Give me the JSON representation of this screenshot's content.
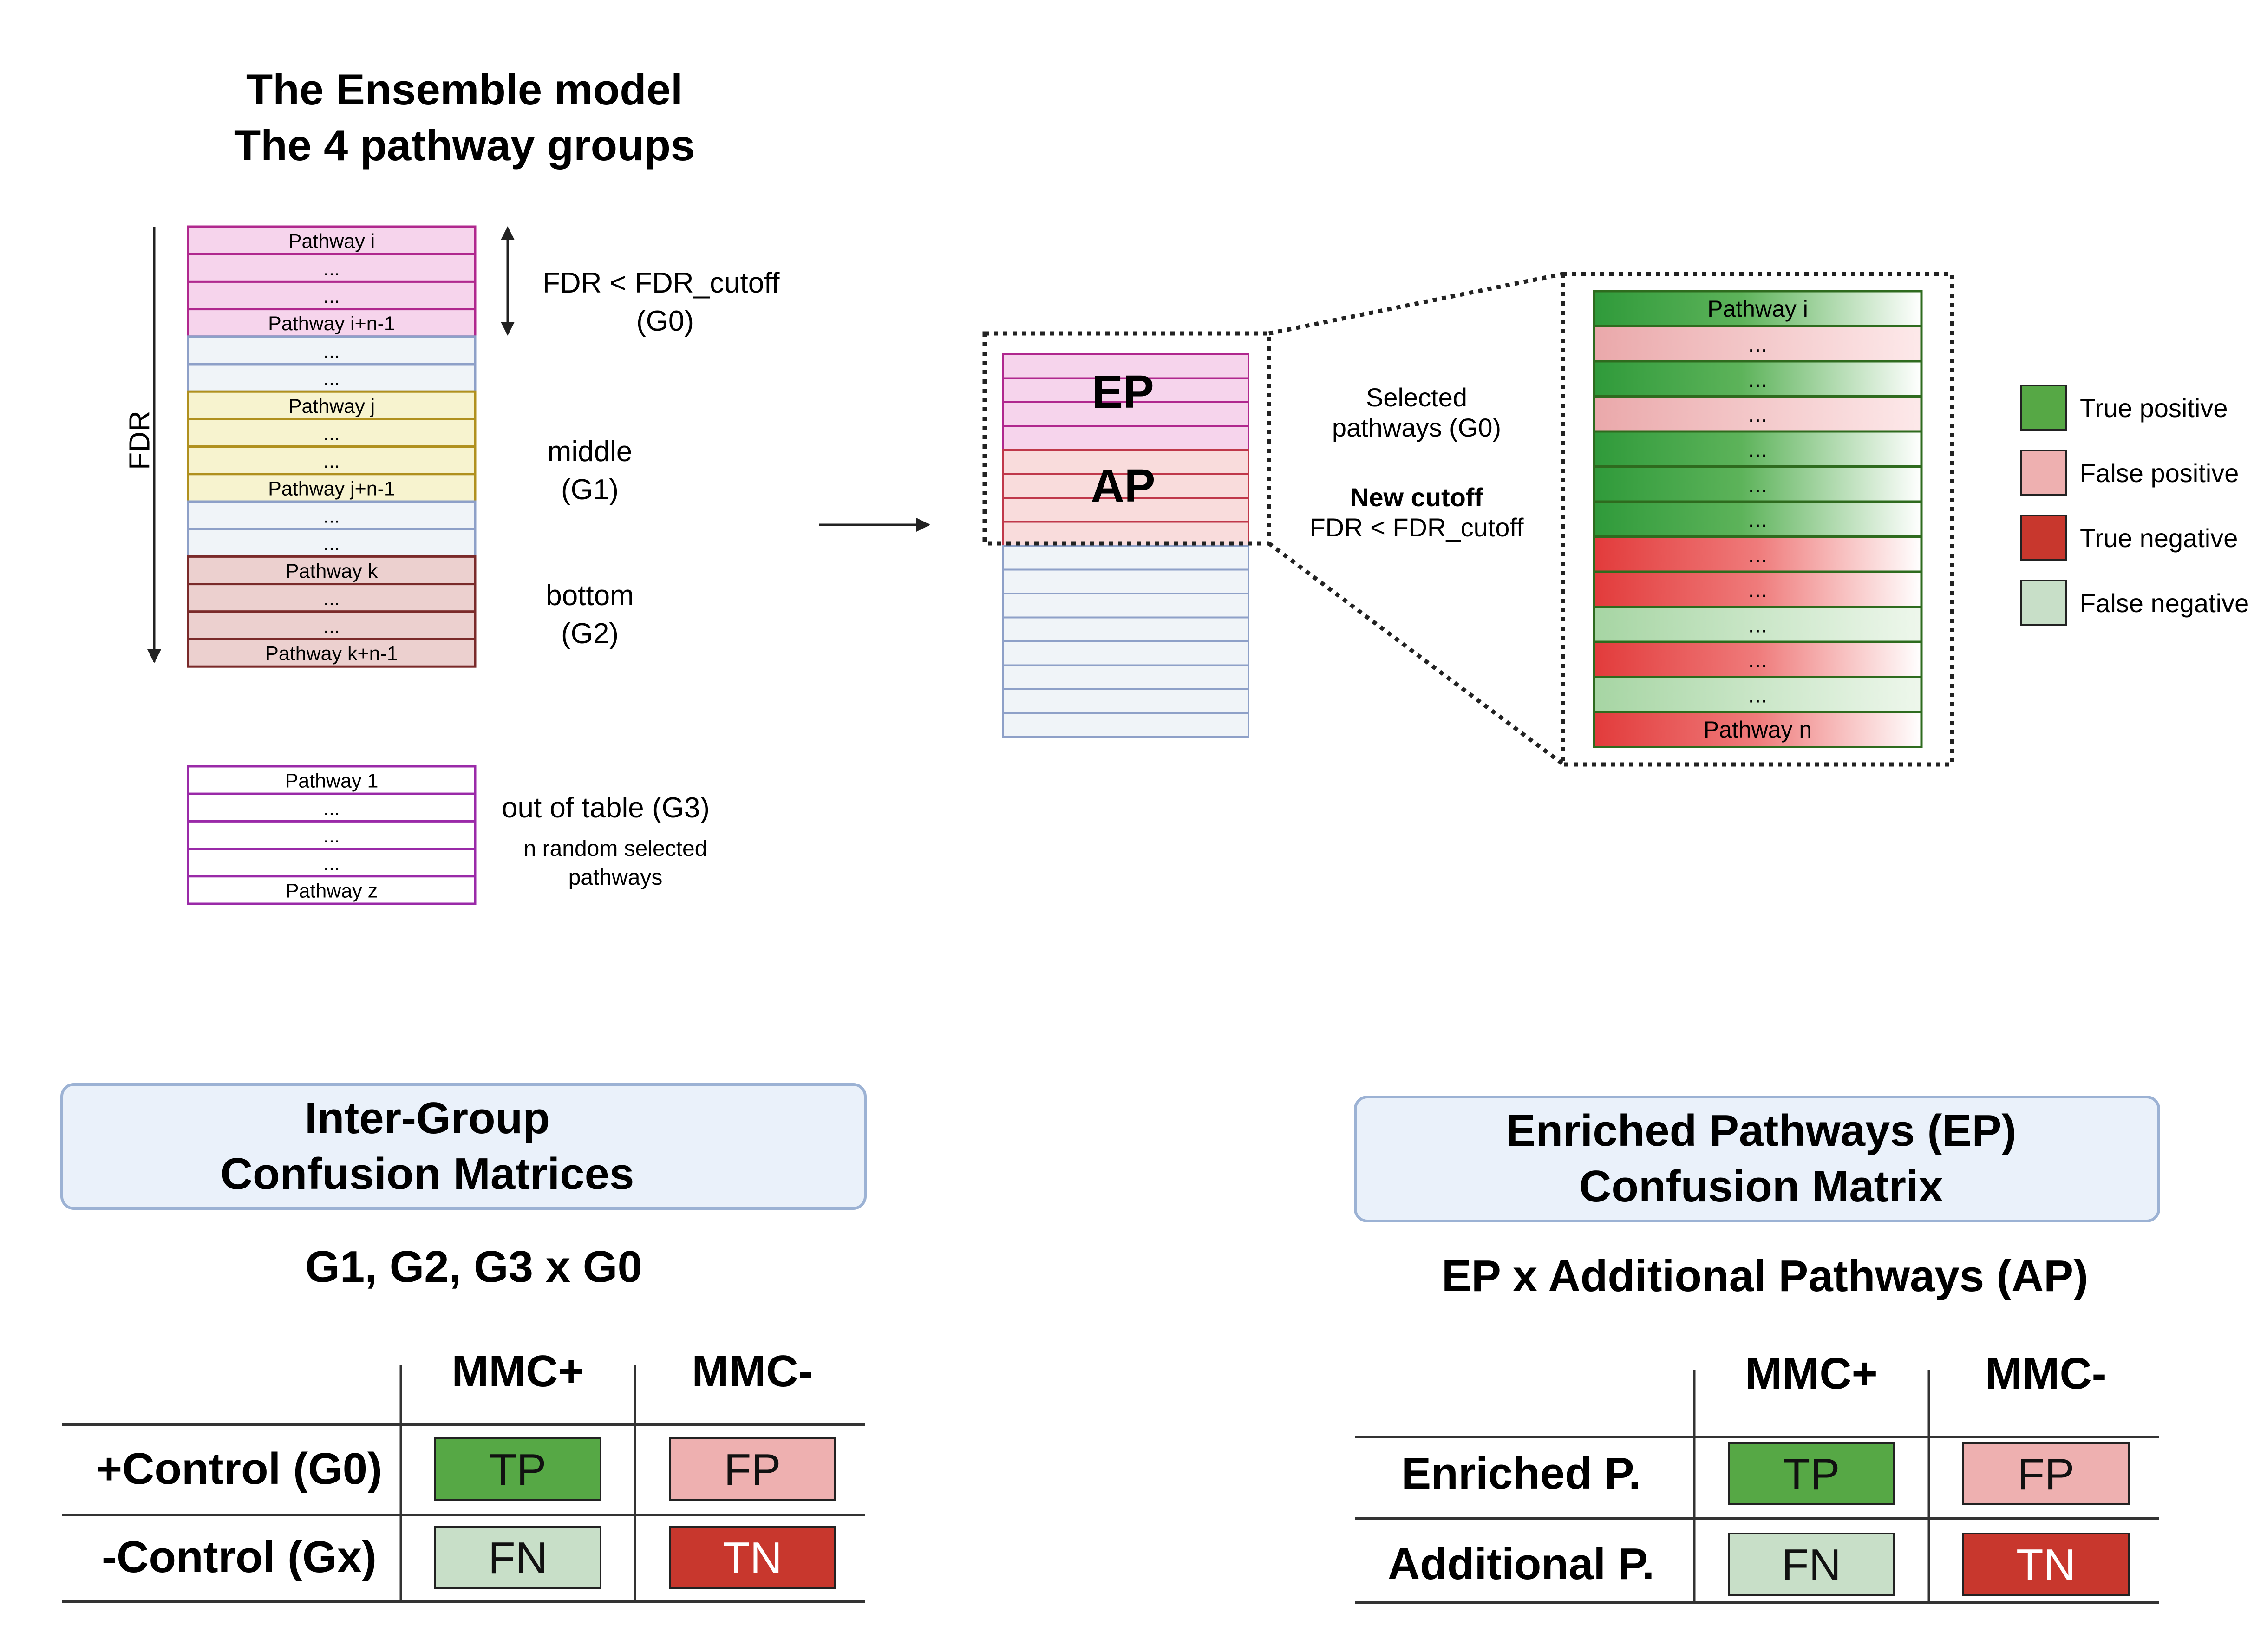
{
  "title": {
    "line1": "The Ensemble model",
    "line2": "The 4 pathway groups"
  },
  "fdr_axis_label": "FDR",
  "pathway_column": [
    {
      "label": "Pathway i",
      "group": "g0"
    },
    {
      "label": "...",
      "group": "g0"
    },
    {
      "label": "...",
      "group": "g0"
    },
    {
      "label": "Pathway i+n-1",
      "group": "g0"
    },
    {
      "label": "...",
      "group": "gap"
    },
    {
      "label": "...",
      "group": "gap"
    },
    {
      "label": "Pathway j",
      "group": "g1"
    },
    {
      "label": "...",
      "group": "g1"
    },
    {
      "label": "...",
      "group": "g1"
    },
    {
      "label": "Pathway  j+n-1",
      "group": "g1"
    },
    {
      "label": "...",
      "group": "gap"
    },
    {
      "label": "...",
      "group": "gap"
    },
    {
      "label": "Pathway k",
      "group": "g2"
    },
    {
      "label": "...",
      "group": "g2"
    },
    {
      "label": "...",
      "group": "g2"
    },
    {
      "label": "Pathway k+n-1",
      "group": "g2"
    }
  ],
  "out_of_table_column": [
    "Pathway 1",
    "...",
    "...",
    "...",
    "Pathway z"
  ],
  "group_labels": {
    "g0_line1": "FDR  < FDR_cutoff",
    "g0_line2": "(G0)",
    "g1_line1": "middle",
    "g1_line2": "(G1)",
    "g2_line1": "bottom",
    "g2_line2": "(G2)",
    "g3_line1": "out of table (G3)",
    "g3_note1": "n random selected",
    "g3_note2": "pathways"
  },
  "stack": {
    "ep_label": "EP",
    "ap_label": "AP"
  },
  "selection_note": {
    "line1": "Selected",
    "line2": "pathways (G0)",
    "cutoff_title": "New cutoff",
    "cutoff_rule": "FDR < FDR_cutoff"
  },
  "classified_list": [
    {
      "label": "Pathway i",
      "class": "true_positive"
    },
    {
      "label": "...",
      "class": "false_positive"
    },
    {
      "label": "...",
      "class": "true_positive"
    },
    {
      "label": "...",
      "class": "false_positive"
    },
    {
      "label": "...",
      "class": "true_positive"
    },
    {
      "label": "...",
      "class": "true_positive"
    },
    {
      "label": "...",
      "class": "true_positive"
    },
    {
      "label": "...",
      "class": "true_negative"
    },
    {
      "label": "...",
      "class": "true_negative"
    },
    {
      "label": "...",
      "class": "false_negative"
    },
    {
      "label": "...",
      "class": "true_negative"
    },
    {
      "label": "...",
      "class": "false_negative"
    },
    {
      "label": "Pathway n",
      "class": "true_negative"
    }
  ],
  "legend": [
    {
      "key": "true_positive",
      "label": "True positive",
      "color": "#56a845"
    },
    {
      "key": "false_positive",
      "label": "False positive",
      "color": "#eeb0b0"
    },
    {
      "key": "true_negative",
      "label": "True negative",
      "color": "#c8372d"
    },
    {
      "key": "false_negative",
      "label": "False negative",
      "color": "#c8dfc8"
    }
  ],
  "colors": {
    "g0_fill": "#f6d4ec",
    "g0_stroke": "#b0288e",
    "gap_fill": "#f0f4f8",
    "gap_stroke": "#8ea0c8",
    "g1_fill": "#f7f3cf",
    "g1_stroke": "#b0901e",
    "g2_fill": "#ecd0cf",
    "g2_stroke": "#7a2a2a",
    "g3_stroke": "#9a2aa8",
    "ap_fill": "#f9dcdc",
    "ap_stroke": "#c0384a",
    "panel_fill": "#eaf1fa",
    "panel_stroke": "#9cb2d4",
    "list_stroke": "#2e6b1e"
  },
  "inter_group": {
    "panel_line1": "Inter-Group",
    "panel_line2": "Confusion Matrices",
    "subtitle": "G1, G2, G3 x G0",
    "col_headers": [
      "MMC+",
      "MMC-"
    ],
    "row_headers": [
      "+Control (G0)",
      "-Control (Gx)"
    ],
    "cells": [
      [
        "TP",
        "FP"
      ],
      [
        "FN",
        "TN"
      ]
    ]
  },
  "enriched": {
    "panel_line1": "Enriched Pathways (EP)",
    "panel_line2": "Confusion Matrix",
    "subtitle": "EP x Additional Pathways (AP)",
    "col_headers": [
      "MMC+",
      "MMC-"
    ],
    "row_headers": [
      "Enriched P.",
      "Additional P."
    ],
    "cells": [
      [
        "TP",
        "FP"
      ],
      [
        "FN",
        "TN"
      ]
    ]
  }
}
